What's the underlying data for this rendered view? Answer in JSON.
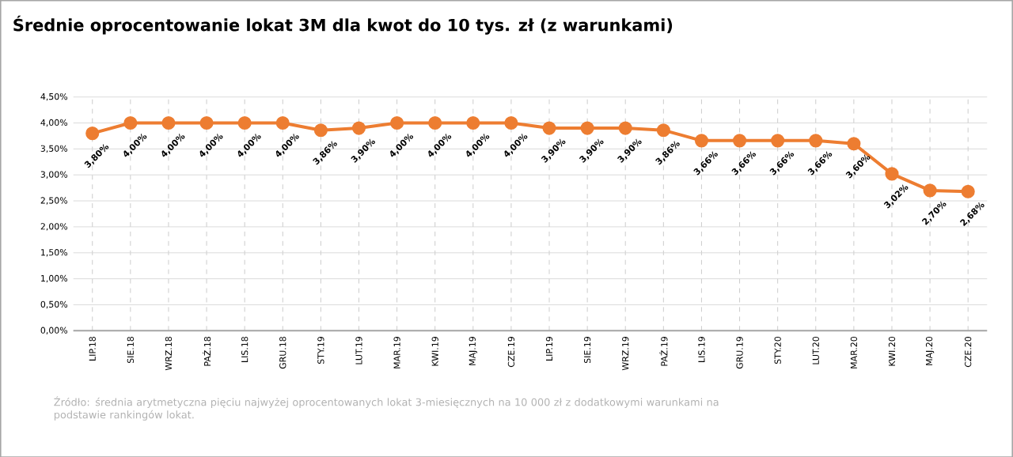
{
  "chart_data": {
    "type": "line",
    "title": "Średnie oprocentowanie lokat 3M dla kwot do 10 tys. zł (z warunkami)",
    "categories": [
      "LIP.18",
      "SIE.18",
      "WRZ.18",
      "PAŹ.18",
      "LIS.18",
      "GRU.18",
      "STY.19",
      "LUT.19",
      "MAR.19",
      "KWI.19",
      "MAJ.19",
      "CZE.19",
      "LIP.19",
      "SIE.19",
      "WRZ.19",
      "PAŹ.19",
      "LIS.19",
      "GRU.19",
      "STY.20",
      "LUT.20",
      "MAR.20",
      "KWI.20",
      "MAJ.20",
      "CZE.20"
    ],
    "values": [
      3.8,
      4.0,
      4.0,
      4.0,
      4.0,
      4.0,
      3.86,
      3.9,
      4.0,
      4.0,
      4.0,
      4.0,
      3.9,
      3.9,
      3.9,
      3.86,
      3.66,
      3.66,
      3.66,
      3.66,
      3.6,
      3.02,
      2.7,
      2.68
    ],
    "value_labels": [
      "3,80%",
      "4,00%",
      "4,00%",
      "4,00%",
      "4,00%",
      "4,00%",
      "3,86%",
      "3,90%",
      "4,00%",
      "4,00%",
      "4,00%",
      "4,00%",
      "3,90%",
      "3,90%",
      "3,90%",
      "3,86%",
      "3,66%",
      "3,66%",
      "3,66%",
      "3,66%",
      "3,60%",
      "3,02%",
      "2,70%",
      "2,68%"
    ],
    "color": "#ed7d31",
    "marker": "circle",
    "line_style": "solid",
    "grid": true,
    "ylim": [
      0,
      4.5
    ],
    "yticks": [
      {
        "value": 0,
        "label": "0,00%"
      },
      {
        "value": 0.5,
        "label": "0,50%"
      },
      {
        "value": 1,
        "label": "1,00%"
      },
      {
        "value": 1.5,
        "label": "1,50%"
      },
      {
        "value": 2,
        "label": "2,00%"
      },
      {
        "value": 2.5,
        "label": "2,50%"
      },
      {
        "value": 3,
        "label": "3,00%"
      },
      {
        "value": 3.5,
        "label": "3,50%"
      },
      {
        "value": 4,
        "label": "4,00%"
      },
      {
        "value": 4.5,
        "label": "4,50%"
      }
    ],
    "annotations": [
      "Źródło: średnia arytmetyczna pięciu najwyżej oprocentowanych lokat 3-miesięcznych na 10 000 zł z dodatkowymi warunkami na podstawie rankingów lokat."
    ]
  }
}
